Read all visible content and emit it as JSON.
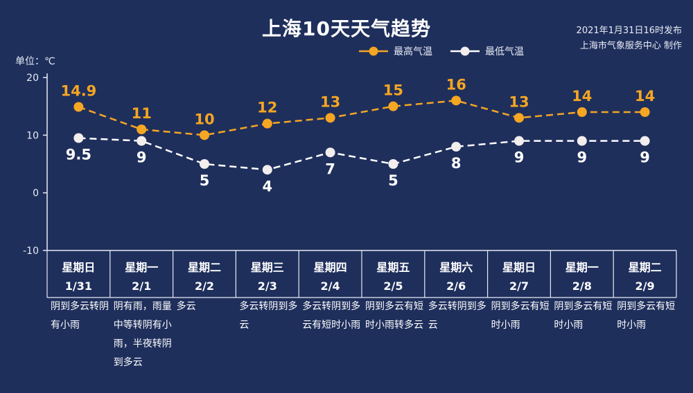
{
  "header": {
    "title": "上海10天天气趋势",
    "publish_line1": "2021年1月31日16时发布",
    "publish_line2": "上海市气象服务中心 制作",
    "unit": "单位：℃"
  },
  "legend": {
    "high": "最高气温",
    "low": "最低气温"
  },
  "colors": {
    "background": "#1f2f5c",
    "high": "#f5a623",
    "low": "#ffffff"
  },
  "chart_data": {
    "type": "line",
    "title": "上海10天天气趋势",
    "ylabel": "单位：℃",
    "ylim": [
      -10,
      20
    ],
    "yticks": [
      "20",
      "10",
      "0",
      "-10"
    ],
    "legend_position": "top",
    "days": [
      {
        "weekday": "星期日",
        "date": "1/31",
        "desc": "阴到多云转阴有小雨"
      },
      {
        "weekday": "星期一",
        "date": "2/1",
        "desc": "阴有雨，雨量中等转阴有小雨，半夜转阴到多云"
      },
      {
        "weekday": "星期二",
        "date": "2/2",
        "desc": "多云"
      },
      {
        "weekday": "星期三",
        "date": "2/3",
        "desc": "多云转阴到多云"
      },
      {
        "weekday": "星期四",
        "date": "2/4",
        "desc": "多云转阴到多云有短时小雨"
      },
      {
        "weekday": "星期五",
        "date": "2/5",
        "desc": "阴到多云有短时小雨转多云"
      },
      {
        "weekday": "星期六",
        "date": "2/6",
        "desc": "多云转阴到多云"
      },
      {
        "weekday": "星期日",
        "date": "2/7",
        "desc": "阴到多云有短时小雨"
      },
      {
        "weekday": "星期一",
        "date": "2/8",
        "desc": "阴到多云有短时小雨"
      },
      {
        "weekday": "星期二",
        "date": "2/9",
        "desc": "阴到多云有短时小雨"
      }
    ],
    "series": [
      {
        "name": "最高气温",
        "values": [
          14.9,
          11,
          10,
          12,
          13,
          15,
          16,
          13,
          14,
          14
        ],
        "labels": [
          "14.9",
          "11",
          "10",
          "12",
          "13",
          "15",
          "16",
          "13",
          "14",
          "14"
        ]
      },
      {
        "name": "最低气温",
        "values": [
          9.5,
          9,
          5,
          4,
          7,
          5,
          8,
          9,
          9,
          9
        ],
        "labels": [
          "9.5",
          "9",
          "5",
          "4",
          "7",
          "5",
          "8",
          "9",
          "9",
          "9"
        ]
      }
    ]
  }
}
